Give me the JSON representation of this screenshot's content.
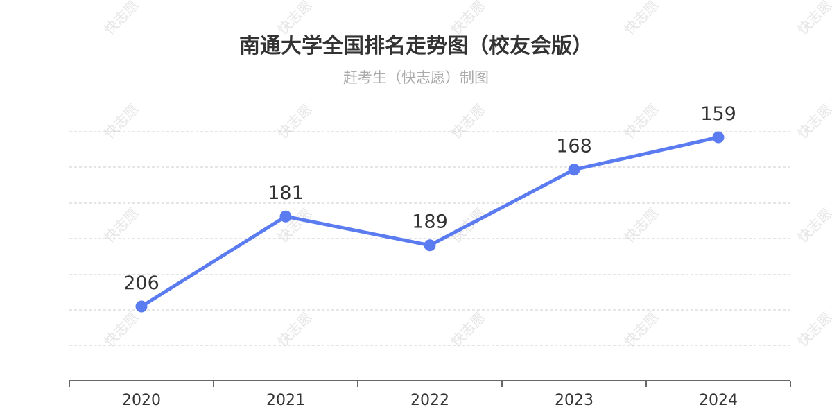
{
  "title": "南通大学全国排名走势图（校友会版）",
  "subtitle": "赶考生（快志愿）制图",
  "watermark": "快志愿",
  "colors": {
    "line": "#5b7bf0",
    "grid": "#cccccc",
    "axis": "#333333"
  },
  "chart_data": {
    "type": "line",
    "categories": [
      "2020",
      "2021",
      "2022",
      "2023",
      "2024"
    ],
    "values": [
      206,
      181,
      189,
      168,
      159
    ],
    "xlabel": "",
    "ylabel": "",
    "y_inverted": true,
    "grid": true,
    "legend": "none"
  }
}
